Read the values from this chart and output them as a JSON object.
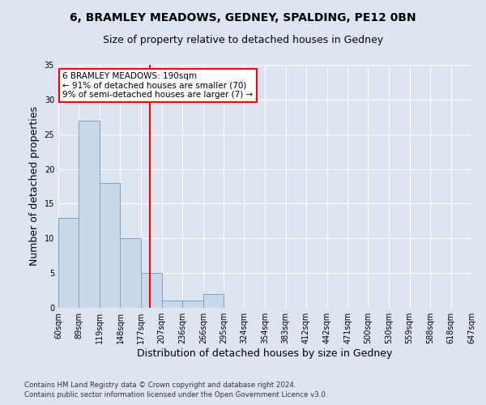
{
  "title1": "6, BRAMLEY MEADOWS, GEDNEY, SPALDING, PE12 0BN",
  "title2": "Size of property relative to detached houses in Gedney",
  "xlabel": "Distribution of detached houses by size in Gedney",
  "ylabel": "Number of detached properties",
  "bins": [
    60,
    89,
    119,
    148,
    177,
    207,
    236,
    266,
    295,
    324,
    354,
    383,
    412,
    442,
    471,
    500,
    530,
    559,
    588,
    618,
    647
  ],
  "counts": [
    13,
    27,
    18,
    10,
    5,
    1,
    1,
    2,
    0,
    0,
    0,
    0,
    0,
    0,
    0,
    0,
    0,
    0,
    0,
    0
  ],
  "bar_color": "#c8d8e8",
  "bar_edge_color": "#7aa0c4",
  "red_line_x": 190,
  "annotation_text": "6 BRAMLEY MEADOWS: 190sqm\n← 91% of detached houses are smaller (70)\n9% of semi-detached houses are larger (7) →",
  "annotation_box_color": "white",
  "annotation_box_edge_color": "red",
  "ylim": [
    0,
    35
  ],
  "yticks": [
    0,
    5,
    10,
    15,
    20,
    25,
    30,
    35
  ],
  "footnote1": "Contains HM Land Registry data © Crown copyright and database right 2024.",
  "footnote2": "Contains public sector information licensed under the Open Government Licence v3.0.",
  "bg_color": "#dde6f0",
  "plot_bg_color": "#dde6f0"
}
